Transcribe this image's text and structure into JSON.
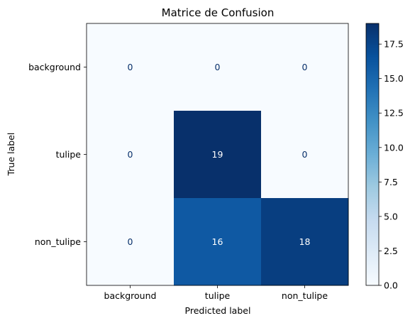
{
  "chart_data": {
    "type": "heatmap",
    "title": "Matrice de Confusion",
    "xlabel": "Predicted label",
    "ylabel": "True label",
    "x_categories": [
      "background",
      "tulipe",
      "non_tulipe"
    ],
    "y_categories": [
      "background",
      "tulipe",
      "non_tulipe"
    ],
    "values": [
      [
        0,
        0,
        0
      ],
      [
        0,
        19,
        0
      ],
      [
        0,
        16,
        18
      ]
    ],
    "colormap": "Blues",
    "colorbar": {
      "min": 0,
      "max": 19,
      "ticks": [
        0.0,
        2.5,
        5.0,
        7.5,
        10.0,
        12.5,
        15.0,
        17.5
      ]
    }
  }
}
